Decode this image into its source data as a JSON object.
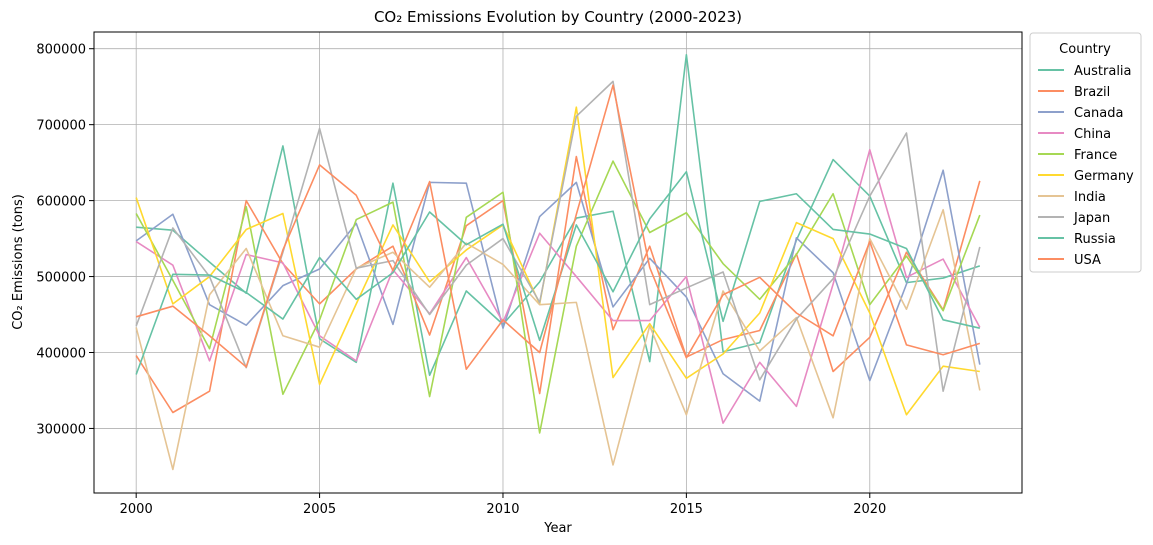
{
  "chart_data": {
    "type": "line",
    "title": "CO₂ Emissions Evolution by Country (2000-2023)",
    "xlabel": "Year",
    "ylabel": "CO₂ Emissions (tons)",
    "x": [
      2000,
      2001,
      2002,
      2003,
      2004,
      2005,
      2006,
      2007,
      2008,
      2009,
      2010,
      2011,
      2012,
      2013,
      2014,
      2015,
      2016,
      2017,
      2018,
      2019,
      2020,
      2021,
      2022,
      2023
    ],
    "xlim": [
      1998.85,
      2024.15
    ],
    "ylim": [
      215000,
      822000
    ],
    "xticks": [
      2000,
      2005,
      2010,
      2015,
      2020
    ],
    "yticks": [
      300000,
      400000,
      500000,
      600000,
      700000,
      800000
    ],
    "grid": true,
    "legend": {
      "title": "Country",
      "placement": "outside-right"
    },
    "series": [
      {
        "name": "Australia",
        "color": "#66c2a5",
        "values": [
          565000,
          561000,
          519000,
          478000,
          672000,
          418000,
          387000,
          623000,
          370000,
          481000,
          437000,
          493000,
          577000,
          586000,
          388000,
          792000,
          401000,
          413000,
          548000,
          654000,
          606000,
          492000,
          498000,
          514000
        ]
      },
      {
        "name": "Brazil",
        "color": "#fc8d62",
        "values": [
          396000,
          321000,
          349000,
          600000,
          517000,
          464000,
          510000,
          540000,
          423000,
          567000,
          600000,
          346000,
          658000,
          430000,
          540000,
          394000,
          417000,
          429000,
          530000,
          375000,
          420000,
          532000,
          456000,
          626000
        ]
      },
      {
        "name": "Canada",
        "color": "#8da0cb",
        "values": [
          547000,
          582000,
          463000,
          436000,
          488000,
          510000,
          570000,
          437000,
          624000,
          623000,
          432000,
          579000,
          624000,
          460000,
          524000,
          473000,
          372000,
          336000,
          551000,
          505000,
          363000,
          490000,
          640000,
          384000
        ]
      },
      {
        "name": "China",
        "color": "#e78ac3",
        "values": [
          546000,
          515000,
          389000,
          529000,
          518000,
          422000,
          389000,
          509000,
          451000,
          525000,
          440000,
          557000,
          500000,
          442000,
          442000,
          500000,
          307000,
          387000,
          329000,
          490000,
          667000,
          499000,
          523000,
          433000
        ]
      },
      {
        "name": "France",
        "color": "#a6d854",
        "values": [
          583000,
          495000,
          405000,
          592000,
          345000,
          443000,
          575000,
          598000,
          342000,
          578000,
          611000,
          294000,
          540000,
          652000,
          558000,
          584000,
          517000,
          470000,
          529000,
          609000,
          463000,
          527000,
          455000,
          581000
        ]
      },
      {
        "name": "Germany",
        "color": "#ffd92f",
        "values": [
          604000,
          464000,
          500000,
          562000,
          583000,
          358000,
          464000,
          568000,
          493000,
          535000,
          568000,
          464000,
          723000,
          367000,
          438000,
          366000,
          398000,
          452000,
          571000,
          550000,
          452000,
          318000,
          382000,
          375000
        ]
      },
      {
        "name": "India",
        "color": "#e5c494",
        "values": [
          433000,
          246000,
          476000,
          537000,
          422000,
          407000,
          511000,
          532000,
          486000,
          544000,
          516000,
          463000,
          466000,
          252000,
          435000,
          318000,
          481000,
          402000,
          446000,
          314000,
          550000,
          457000,
          588000,
          350000
        ]
      },
      {
        "name": "Japan",
        "color": "#b3b3b3",
        "values": [
          435000,
          564000,
          500000,
          380000,
          532000,
          695000,
          511000,
          521000,
          450000,
          515000,
          550000,
          466000,
          711000,
          757000,
          463000,
          485000,
          506000,
          364000,
          444000,
          497000,
          606000,
          689000,
          349000,
          539000
        ]
      },
      {
        "name": "Russia",
        "color": "#66c2a5",
        "values": [
          371000,
          503000,
          502000,
          479000,
          444000,
          525000,
          470000,
          505000,
          585000,
          542000,
          569000,
          416000,
          568000,
          480000,
          576000,
          638000,
          441000,
          599000,
          609000,
          562000,
          556000,
          537000,
          443000,
          432000
        ]
      },
      {
        "name": "USA",
        "color": "#fc8d62",
        "values": [
          447000,
          461000,
          422000,
          381000,
          535000,
          647000,
          607000,
          508000,
          625000,
          378000,
          443000,
          400000,
          582000,
          752000,
          512000,
          393000,
          476000,
          499000,
          452000,
          422000,
          546000,
          410000,
          397000,
          412000
        ]
      }
    ]
  }
}
